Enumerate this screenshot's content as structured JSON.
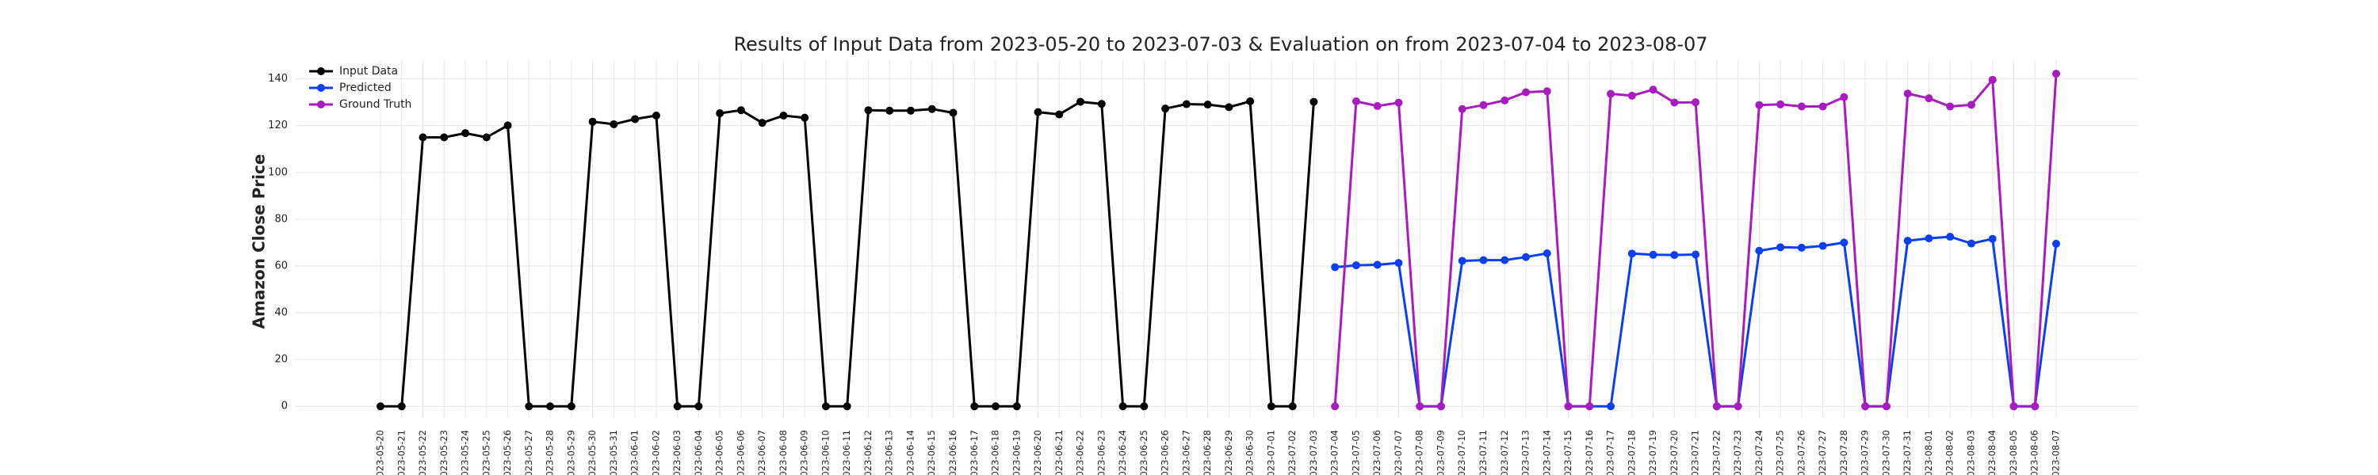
{
  "chart_data": {
    "type": "line",
    "title": "Results of Input Data from 2023-05-20 to 2023-07-03 & Evaluation on from 2023-07-04 to 2023-08-07",
    "y_label": "Amazon Close Price",
    "categories": [
      "2023-05-20",
      "2023-05-21",
      "2023-05-22",
      "2023-05-23",
      "2023-05-24",
      "2023-05-25",
      "2023-05-26",
      "2023-05-27",
      "2023-05-28",
      "2023-05-29",
      "2023-05-30",
      "2023-05-31",
      "2023-06-01",
      "2023-06-02",
      "2023-06-03",
      "2023-06-04",
      "2023-06-05",
      "2023-06-06",
      "2023-06-07",
      "2023-06-08",
      "2023-06-09",
      "2023-06-10",
      "2023-06-11",
      "2023-06-12",
      "2023-06-13",
      "2023-06-14",
      "2023-06-15",
      "2023-06-16",
      "2023-06-17",
      "2023-06-18",
      "2023-06-19",
      "2023-06-20",
      "2023-06-21",
      "2023-06-22",
      "2023-06-23",
      "2023-06-24",
      "2023-06-25",
      "2023-06-26",
      "2023-06-27",
      "2023-06-28",
      "2023-06-29",
      "2023-06-30",
      "2023-07-01",
      "2023-07-02",
      "2023-07-03",
      "2023-07-04",
      "2023-07-05",
      "2023-07-06",
      "2023-07-07",
      "2023-07-08",
      "2023-07-09",
      "2023-07-10",
      "2023-07-11",
      "2023-07-12",
      "2023-07-13",
      "2023-07-14",
      "2023-07-15",
      "2023-07-16",
      "2023-07-17",
      "2023-07-18",
      "2023-07-19",
      "2023-07-20",
      "2023-07-21",
      "2023-07-22",
      "2023-07-23",
      "2023-07-24",
      "2023-07-25",
      "2023-07-26",
      "2023-07-27",
      "2023-07-28",
      "2023-07-29",
      "2023-07-30",
      "2023-07-31",
      "2023-08-01",
      "2023-08-02",
      "2023-08-03",
      "2023-08-04",
      "2023-08-05",
      "2023-08-06",
      "2023-08-07"
    ],
    "series": [
      {
        "name": "Input Data",
        "color": "#000000",
        "values": [
          0,
          0,
          115.0,
          115.0,
          116.8,
          115.0,
          120.1,
          0,
          0,
          0,
          121.7,
          120.6,
          122.8,
          124.3,
          0,
          0,
          125.3,
          126.6,
          121.2,
          124.3,
          123.4,
          0,
          0,
          126.6,
          126.4,
          126.4,
          127.1,
          125.5,
          0,
          0,
          0,
          125.8,
          124.8,
          130.2,
          129.3,
          0,
          0,
          127.3,
          129.2,
          129.0,
          127.9,
          130.4,
          0,
          0,
          130.2,
          null,
          null,
          null,
          null,
          null,
          null,
          null,
          null,
          null,
          null,
          null,
          null,
          null,
          null,
          null,
          null,
          null,
          null,
          null,
          null,
          null,
          null,
          null,
          null,
          null,
          null,
          null,
          null,
          null,
          null,
          null,
          null,
          null,
          null,
          null
        ]
      },
      {
        "name": "Predicted",
        "color": "#0a3ff5",
        "values": [
          null,
          null,
          null,
          null,
          null,
          null,
          null,
          null,
          null,
          null,
          null,
          null,
          null,
          null,
          null,
          null,
          null,
          null,
          null,
          null,
          null,
          null,
          null,
          null,
          null,
          null,
          null,
          null,
          null,
          null,
          null,
          null,
          null,
          null,
          null,
          null,
          null,
          null,
          null,
          null,
          null,
          null,
          null,
          null,
          null,
          59.5,
          60.3,
          60.5,
          61.3,
          0,
          0,
          62.2,
          62.5,
          62.5,
          63.8,
          65.4,
          0,
          0,
          0,
          65.3,
          64.8,
          64.7,
          64.9,
          0,
          0,
          66.5,
          68.0,
          67.8,
          68.6,
          70.0,
          0,
          0,
          70.8,
          71.8,
          72.5,
          69.6,
          71.6,
          0,
          0,
          69.5
        ]
      },
      {
        "name": "Ground Truth",
        "color": "#a71bbf",
        "values": [
          null,
          null,
          null,
          null,
          null,
          null,
          null,
          null,
          null,
          null,
          null,
          null,
          null,
          null,
          null,
          null,
          null,
          null,
          null,
          null,
          null,
          null,
          null,
          null,
          null,
          null,
          null,
          null,
          null,
          null,
          null,
          null,
          null,
          null,
          null,
          null,
          null,
          null,
          null,
          null,
          null,
          null,
          null,
          null,
          null,
          0,
          130.4,
          128.4,
          129.8,
          0,
          0,
          127.1,
          128.8,
          130.8,
          134.3,
          134.7,
          0,
          0,
          133.6,
          132.8,
          135.4,
          129.9,
          130.0,
          0,
          0,
          128.8,
          129.1,
          128.2,
          128.2,
          132.2,
          0,
          0,
          133.7,
          131.7,
          128.2,
          128.9,
          139.6,
          0,
          0,
          142.2
        ]
      }
    ],
    "ylim": [
      -5,
      148
    ],
    "yticks": [
      0,
      20,
      40,
      60,
      80,
      100,
      120,
      140
    ],
    "grid": true,
    "legend": "upper left"
  }
}
